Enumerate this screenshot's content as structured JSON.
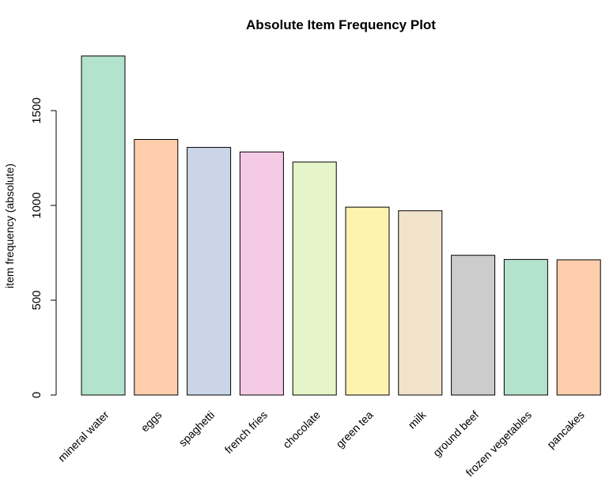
{
  "chart_data": {
    "type": "bar",
    "title": "Absolute Item Frequency Plot",
    "xlabel": "",
    "ylabel": "item frequency (absolute)",
    "categories": [
      "mineral water",
      "eggs",
      "spaghetti",
      "french fries",
      "chocolate",
      "green tea",
      "milk",
      "ground beef",
      "frozen vegetables",
      "pancakes"
    ],
    "values": [
      1788,
      1348,
      1306,
      1282,
      1229,
      991,
      972,
      737,
      715,
      713
    ],
    "colors": [
      "#B3E2CD",
      "#FDCDAC",
      "#CBD5E8",
      "#F4CAE4",
      "#E6F5C9",
      "#FFF2AE",
      "#F1E2CC",
      "#CCCCCC",
      "#B3E2CD",
      "#FDCDAC"
    ],
    "yticks": [
      0,
      500,
      1000,
      1500
    ],
    "ylim": [
      0,
      1800
    ],
    "grid": false,
    "legend": "none"
  }
}
